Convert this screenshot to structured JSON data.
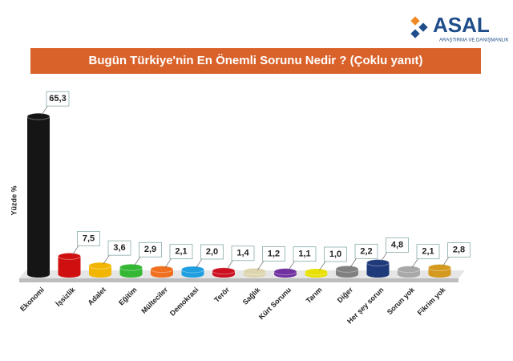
{
  "logo": {
    "name": "ASAL",
    "tagline": "ARAŞTIRMA VE DANIŞMANLIK"
  },
  "chart_data": {
    "type": "bar",
    "title": "Bugün Türkiye'nin En Önemli Sorunu Nedir ? (Çoklu yanıt)",
    "y_label": "Yüzde %",
    "categories": [
      "Ekonomi",
      "İşsizlik",
      "Adalet",
      "Eğitim",
      "Mülteciler",
      "Demokrasi",
      "Terör",
      "Sağlık",
      "Kürt Sorunu",
      "Tarım",
      "Diğer",
      "Her şey sorun",
      "Sorun yok",
      "Fikrim yok"
    ],
    "values": [
      65.3,
      7.5,
      3.6,
      2.9,
      2.1,
      2.0,
      1.4,
      1.2,
      1.1,
      1.0,
      2.2,
      4.8,
      2.1,
      2.8
    ],
    "value_labels": [
      "65,3",
      "7,5",
      "3,6",
      "2,9",
      "2,1",
      "2,0",
      "1,4",
      "1,2",
      "1,1",
      "1,0",
      "2,2",
      "4,8",
      "2,1",
      "2,8"
    ],
    "colors": [
      "#151515",
      "#d01010",
      "#f2b600",
      "#34b834",
      "#f07020",
      "#1f9ee0",
      "#cc1020",
      "#ddd5ae",
      "#7030a0",
      "#e8e000",
      "#808080",
      "#1f3a7a",
      "#a8a8a8",
      "#d49a20"
    ],
    "ylim": [
      0,
      70
    ]
  }
}
